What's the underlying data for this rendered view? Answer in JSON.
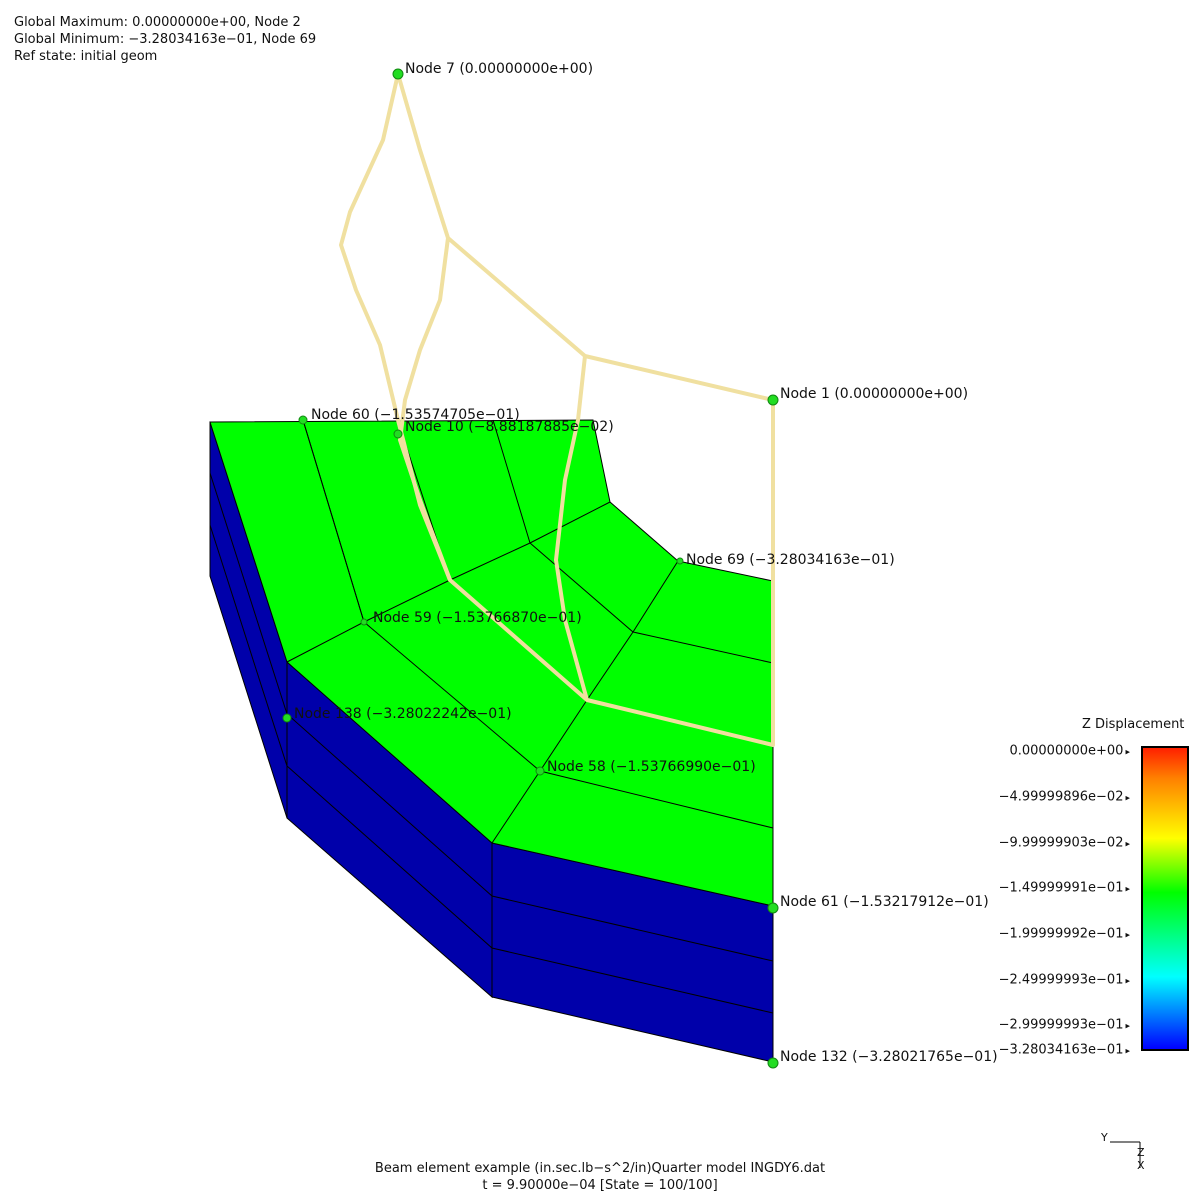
{
  "info": {
    "global_max": "Global Maximum: 0.00000000e+00, Node 2",
    "global_min": "Global Minimum: −3.28034163e−01, Node 69",
    "ref_state": "Ref state: initial geom"
  },
  "node_labels": [
    {
      "id": "node-7",
      "text": "Node 7 (0.00000000e+00)"
    },
    {
      "id": "node-1",
      "text": "Node 1 (0.00000000e+00)"
    },
    {
      "id": "node-60",
      "text": "Node 60 (−1.53574705e−01)"
    },
    {
      "id": "node-10",
      "text": "Node 10 (−8.88187885e−02)"
    },
    {
      "id": "node-69",
      "text": "Node 69 (−3.28034163e−01)"
    },
    {
      "id": "node-59",
      "text": "Node 59 (−1.53766870e−01)"
    },
    {
      "id": "node-138",
      "text": "Node 138 (−3.28022242e−01)"
    },
    {
      "id": "node-58",
      "text": "Node 58 (−1.53766990e−01)"
    },
    {
      "id": "node-61",
      "text": "Node 61 (−1.53217912e−01)"
    },
    {
      "id": "node-132",
      "text": "Node 132 (−3.28021765e−01)"
    }
  ],
  "legend": {
    "title": "Z Displacement",
    "ticks": [
      "0.00000000e+00",
      "−4.99999896e−02",
      "−9.99999903e−02",
      "−1.49999991e−01",
      "−1.99999992e−01",
      "−2.49999993e−01",
      "−2.99999993e−01",
      "−3.28034163e−01"
    ]
  },
  "footer": {
    "line1": "Beam element example (in.sec.lb−s^2/in)Quarter model INGDY6.dat",
    "line2": "t = 9.90000e−04 [State = 100/100]"
  },
  "triad": {
    "y": "Y",
    "z": "Z",
    "x": "X"
  },
  "colors": {
    "top_surface": "#00ff00",
    "side_surface": "#0000aa",
    "beam": "#f0e0a0",
    "node_dot": "#22dd22"
  }
}
